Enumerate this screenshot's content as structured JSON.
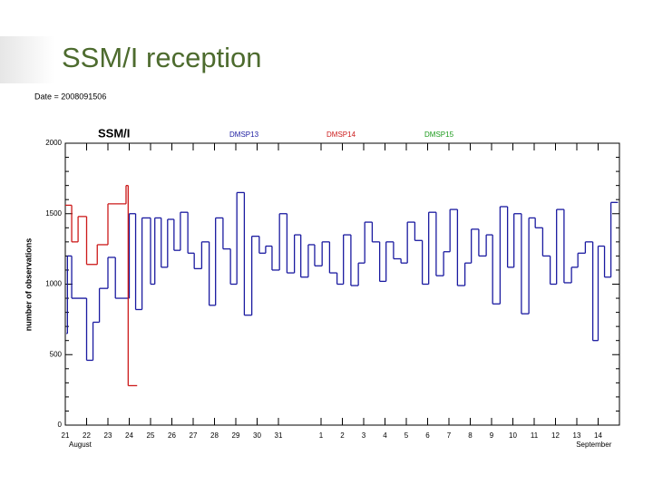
{
  "slide_title": "SSM/I reception",
  "chart_data": {
    "type": "line",
    "step": "post",
    "title": "SSM/I",
    "subtitle": "Date = 2008091506",
    "ylabel": "number of observations",
    "xlim": [
      0,
      26
    ],
    "ylim": [
      0,
      2000
    ],
    "yticks": [
      0,
      500,
      1000,
      1500,
      2000
    ],
    "xticks": [
      {
        "value": 0,
        "label": "21"
      },
      {
        "value": 1,
        "label": "22"
      },
      {
        "value": 2,
        "label": "23"
      },
      {
        "value": 3,
        "label": "24"
      },
      {
        "value": 4,
        "label": "25"
      },
      {
        "value": 5,
        "label": "26"
      },
      {
        "value": 6,
        "label": "27"
      },
      {
        "value": 7,
        "label": "28"
      },
      {
        "value": 8,
        "label": "29"
      },
      {
        "value": 9,
        "label": "30"
      },
      {
        "value": 10,
        "label": "31"
      },
      {
        "value": 12,
        "label": "1"
      },
      {
        "value": 13,
        "label": "2"
      },
      {
        "value": 14,
        "label": "3"
      },
      {
        "value": 15,
        "label": "4"
      },
      {
        "value": 16,
        "label": "5"
      },
      {
        "value": 17,
        "label": "6"
      },
      {
        "value": 18,
        "label": "7"
      },
      {
        "value": 19,
        "label": "8"
      },
      {
        "value": 20,
        "label": "9"
      },
      {
        "value": 21,
        "label": "10"
      },
      {
        "value": 22,
        "label": "11"
      },
      {
        "value": 23,
        "label": "12"
      },
      {
        "value": 24,
        "label": "13"
      },
      {
        "value": 25,
        "label": "14"
      }
    ],
    "x_group_labels": [
      {
        "value": 0.7,
        "label": "August"
      },
      {
        "value": 24.8,
        "label": "September"
      }
    ],
    "series": [
      {
        "name": "DMSP13",
        "color": "#1a1aa0",
        "x": [
          0.05,
          0.1,
          0.3,
          1.0,
          1.3,
          1.6,
          2.0,
          2.35,
          3.0,
          3.3,
          3.6,
          4.0,
          4.2,
          4.5,
          4.8,
          5.1,
          5.4,
          5.75,
          6.05,
          6.4,
          6.75,
          7.05,
          7.4,
          7.75,
          8.05,
          8.4,
          8.75,
          9.1,
          9.4,
          9.7,
          10.05,
          10.4,
          10.75,
          11.05,
          11.4,
          11.7,
          12.05,
          12.4,
          12.75,
          13.05,
          13.4,
          13.75,
          14.05,
          14.4,
          14.75,
          15.05,
          15.4,
          15.75,
          16.05,
          16.4,
          16.75,
          17.05,
          17.4,
          17.75,
          18.05,
          18.4,
          18.75,
          19.05,
          19.4,
          19.75,
          20.05,
          20.4,
          20.75,
          21.05,
          21.4,
          21.75,
          22.05,
          22.4,
          22.75,
          23.05,
          23.4,
          23.75,
          24.05,
          24.4,
          24.75,
          25.0,
          25.3,
          25.6
        ],
        "values": [
          650,
          1200,
          900,
          460,
          730,
          970,
          1190,
          900,
          1500,
          820,
          1470,
          1000,
          1470,
          1120,
          1460,
          1240,
          1510,
          1220,
          1110,
          1300,
          850,
          1470,
          1250,
          1000,
          1650,
          780,
          1340,
          1220,
          1270,
          1100,
          1500,
          1080,
          1350,
          1050,
          1280,
          1130,
          1300,
          1080,
          1000,
          1350,
          990,
          1150,
          1440,
          1300,
          1020,
          1300,
          1180,
          1150,
          1440,
          1310,
          1000,
          1510,
          1060,
          1230,
          1530,
          990,
          1150,
          1390,
          1200,
          1350,
          860,
          1550,
          1120,
          1500,
          790,
          1470,
          1400,
          1200,
          1000,
          1530,
          1010,
          1120,
          1220,
          1300,
          600,
          1270,
          1050,
          1580
        ]
      },
      {
        "name": "DMSP14",
        "color": "#cc1a1a",
        "x": [
          0.0,
          0.3,
          0.6,
          1.0,
          1.5,
          2.0,
          2.85,
          2.95
        ],
        "values": [
          1560,
          1300,
          1480,
          1140,
          1280,
          1570,
          1700,
          280
        ]
      },
      {
        "name": "DMSP15",
        "color": "#1a9a1a",
        "x": [],
        "values": []
      }
    ]
  }
}
